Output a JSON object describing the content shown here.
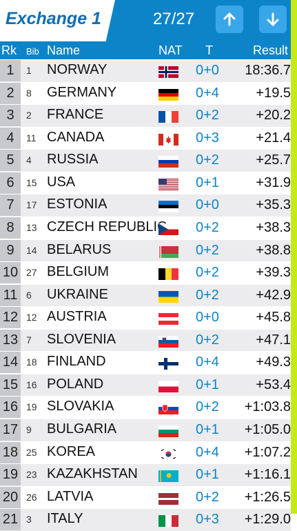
{
  "header": {
    "title": "Exchange 1",
    "count": "27/27",
    "up_icon": "arrow-up-icon",
    "down_icon": "arrow-down-icon",
    "accent": "#0e84c8"
  },
  "columns": {
    "rk": "Rk",
    "bib": "Bib",
    "name": "Name",
    "nat": "NAT",
    "t": "T",
    "result": "Result"
  },
  "rows": [
    {
      "rk": "1",
      "bib": "1",
      "name": "NORWAY",
      "flag": "norway",
      "t": "0+0",
      "result": "18:36.7"
    },
    {
      "rk": "2",
      "bib": "8",
      "name": "GERMANY",
      "flag": "germany",
      "t": "0+4",
      "result": "+19.5"
    },
    {
      "rk": "3",
      "bib": "2",
      "name": "FRANCE",
      "flag": "france",
      "t": "0+2",
      "result": "+20.2"
    },
    {
      "rk": "4",
      "bib": "11",
      "name": "CANADA",
      "flag": "canada",
      "t": "0+3",
      "result": "+21.4"
    },
    {
      "rk": "5",
      "bib": "4",
      "name": "RUSSIA",
      "flag": "russia",
      "t": "0+2",
      "result": "+25.7"
    },
    {
      "rk": "6",
      "bib": "15",
      "name": "USA",
      "flag": "usa",
      "t": "0+1",
      "result": "+31.9"
    },
    {
      "rk": "7",
      "bib": "17",
      "name": "ESTONIA",
      "flag": "estonia",
      "t": "0+0",
      "result": "+35.3"
    },
    {
      "rk": "8",
      "bib": "13",
      "name": "CZECH REPUBLIC",
      "flag": "czech",
      "t": "0+2",
      "result": "+38.3"
    },
    {
      "rk": "9",
      "bib": "14",
      "name": "BELARUS",
      "flag": "belarus",
      "t": "0+2",
      "result": "+38.8"
    },
    {
      "rk": "10",
      "bib": "27",
      "name": "BELGIUM",
      "flag": "belgium",
      "t": "0+2",
      "result": "+39.3"
    },
    {
      "rk": "11",
      "bib": "6",
      "name": "UKRAINE",
      "flag": "ukraine",
      "t": "0+2",
      "result": "+42.9"
    },
    {
      "rk": "12",
      "bib": "12",
      "name": "AUSTRIA",
      "flag": "austria",
      "t": "0+0",
      "result": "+45.8"
    },
    {
      "rk": "13",
      "bib": "7",
      "name": "SLOVENIA",
      "flag": "slovenia",
      "t": "0+2",
      "result": "+47.1"
    },
    {
      "rk": "14",
      "bib": "18",
      "name": "FINLAND",
      "flag": "finland",
      "t": "0+4",
      "result": "+49.3"
    },
    {
      "rk": "15",
      "bib": "16",
      "name": "POLAND",
      "flag": "poland",
      "t": "0+1",
      "result": "+53.4"
    },
    {
      "rk": "16",
      "bib": "19",
      "name": "SLOVAKIA",
      "flag": "slovakia",
      "t": "0+2",
      "result": "+1:03.8"
    },
    {
      "rk": "17",
      "bib": "9",
      "name": "BULGARIA",
      "flag": "bulgaria",
      "t": "0+1",
      "result": "+1:05.0"
    },
    {
      "rk": "18",
      "bib": "25",
      "name": "KOREA",
      "flag": "korea",
      "t": "0+4",
      "result": "+1:07.2"
    },
    {
      "rk": "19",
      "bib": "23",
      "name": "KAZAKHSTAN",
      "flag": "kazakhstan",
      "t": "0+1",
      "result": "+1:16.1"
    },
    {
      "rk": "20",
      "bib": "26",
      "name": "LATVIA",
      "flag": "latvia",
      "t": "0+2",
      "result": "+1:26.5"
    },
    {
      "rk": "21",
      "bib": "3",
      "name": "ITALY",
      "flag": "italy",
      "t": "0+3",
      "result": "+1:29.0"
    }
  ]
}
